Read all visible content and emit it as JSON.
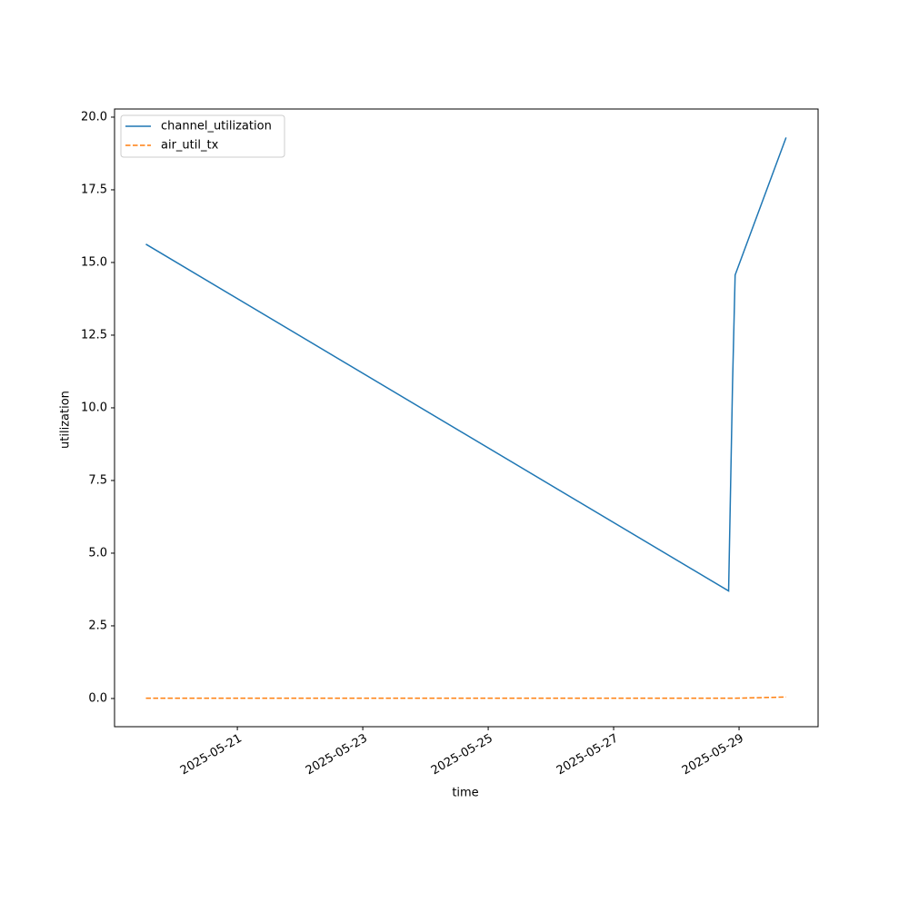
{
  "chart_data": {
    "type": "line",
    "x_label": "time",
    "y_label": "utilization",
    "x": [
      "2025-05-19T13:00",
      "2025-05-28T20:00",
      "2025-05-28T21:30",
      "2025-05-28T22:30",
      "2025-05-29T18:00"
    ],
    "series": [
      {
        "name": "channel_utilization",
        "color": "#1f77b4",
        "dash": "solid",
        "values": [
          15.63,
          3.7,
          10.8,
          14.57,
          19.3
        ]
      },
      {
        "name": "air_util_tx",
        "color": "#ff7f0e",
        "dash": "dashed",
        "values": [
          0.01,
          0.01,
          0.01,
          0.01,
          0.05
        ]
      }
    ],
    "xlim": [
      "2025-05-19T01:00",
      "2025-05-30T06:15"
    ],
    "xticks": [
      "2025-05-21",
      "2025-05-23",
      "2025-05-25",
      "2025-05-27",
      "2025-05-29"
    ],
    "ylim": [
      -0.97,
      20.28
    ],
    "yticks": [
      {
        "value": 0,
        "label": "0.0"
      },
      2.5,
      {
        "value": 5,
        "label": "5.0"
      },
      7.5,
      {
        "value": 10,
        "label": "10.0"
      },
      12.5,
      {
        "value": 15,
        "label": "15.0"
      },
      17.5,
      {
        "value": 20,
        "label": "20.0"
      }
    ],
    "legend": "upper-left",
    "grid": false
  }
}
